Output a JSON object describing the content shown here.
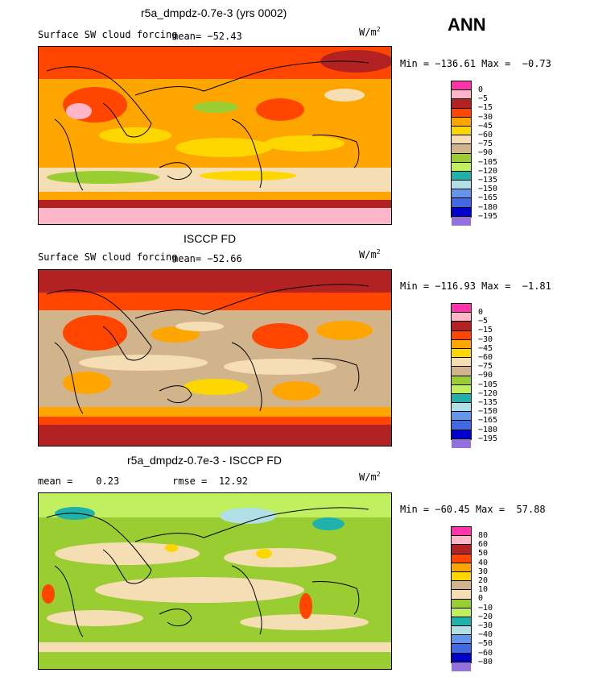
{
  "season": "ANN",
  "units": "W/m",
  "units_sup": "2",
  "panels": [
    {
      "title": "r5a_dmpdz-0.7e-3 (yrs 0002)",
      "subtitle": "Surface SW cloud forcing",
      "mean_label": "mean=",
      "mean_value": "−52.43",
      "min_label": "Min =",
      "min_value": "−136.61",
      "max_label": "Max =",
      "max_value": "−0.73",
      "legend_labels": [
        "0",
        "−5",
        "−15",
        "−30",
        "−45",
        "−60",
        "−75",
        "−90",
        "−105",
        "−120",
        "−135",
        "−150",
        "−165",
        "−180",
        "−195"
      ],
      "legend_colors": [
        "#ff33aa",
        "#ffb6c8",
        "#b22222",
        "#ff4500",
        "#ffa500",
        "#ffd700",
        "#f5deb3",
        "#d2b48c",
        "#9acd32",
        "#c0f060",
        "#20b2aa",
        "#b0e0e6",
        "#6495ed",
        "#4169e1",
        "#0000cd",
        "#9370db"
      ]
    },
    {
      "title": "ISCCP FD",
      "subtitle": "Surface SW cloud forcing",
      "mean_label": "mean=",
      "mean_value": "−52.66",
      "min_label": "Min =",
      "min_value": "−116.93",
      "max_label": "Max =",
      "max_value": "−1.81",
      "legend_labels": [
        "0",
        "−5",
        "−15",
        "−30",
        "−45",
        "−60",
        "−75",
        "−90",
        "−105",
        "−120",
        "−135",
        "−150",
        "−165",
        "−180",
        "−195"
      ],
      "legend_colors": [
        "#ff33aa",
        "#ffb6c8",
        "#b22222",
        "#ff4500",
        "#ffa500",
        "#ffd700",
        "#f5deb3",
        "#d2b48c",
        "#9acd32",
        "#c0f060",
        "#20b2aa",
        "#b0e0e6",
        "#6495ed",
        "#4169e1",
        "#0000cd",
        "#9370db"
      ]
    },
    {
      "title": "r5a_dmpdz-0.7e-3 - ISCCP FD",
      "mean_label": "mean =",
      "mean_value": "0.23",
      "rmse_label": "rmse =",
      "rmse_value": "12.92",
      "min_label": "Min =",
      "min_value": "−60.45",
      "max_label": "Max =",
      "max_value": "57.88",
      "legend_labels": [
        "80",
        "60",
        "50",
        "40",
        "30",
        "20",
        "10",
        "0",
        "−10",
        "−20",
        "−30",
        "−40",
        "−50",
        "−60",
        "−80"
      ],
      "legend_colors": [
        "#ff33aa",
        "#ffb6c8",
        "#b22222",
        "#ff4500",
        "#ffa500",
        "#ffd700",
        "#d2b48c",
        "#f5deb3",
        "#9acd32",
        "#c0f060",
        "#20b2aa",
        "#b0e0e6",
        "#6495ed",
        "#4169e1",
        "#0000cd",
        "#9370db"
      ]
    }
  ]
}
